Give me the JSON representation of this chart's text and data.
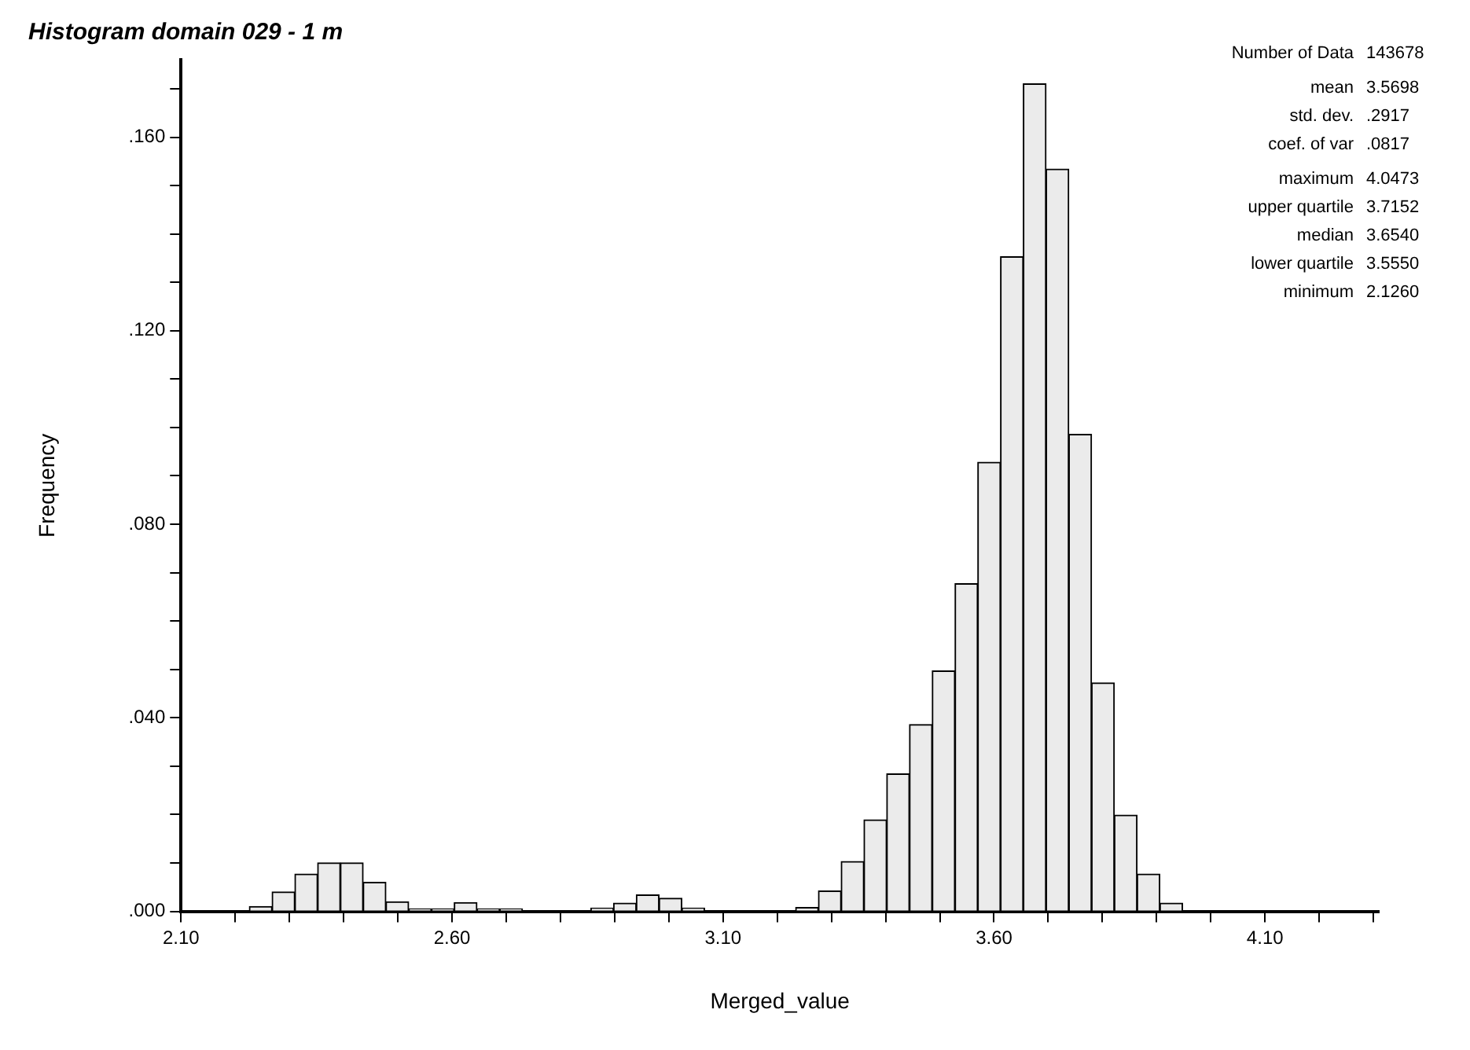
{
  "chart_data": {
    "type": "histogram",
    "title": "Histogram domain 029 - 1 m",
    "xlabel": "Merged_value",
    "ylabel": "Frequency",
    "bins": [
      2.226,
      2.268,
      2.31,
      2.352,
      2.394,
      2.436,
      2.478,
      2.52,
      2.562,
      2.604,
      2.646,
      2.688,
      2.73,
      2.772,
      2.814,
      2.856,
      2.898,
      2.94,
      2.982,
      3.024,
      3.066,
      3.108,
      3.15,
      3.192,
      3.234,
      3.276,
      3.318,
      3.36,
      3.402,
      3.444,
      3.486,
      3.528,
      3.57,
      3.612,
      3.654,
      3.696,
      3.738,
      3.78,
      3.822,
      3.864,
      3.906,
      3.948
    ],
    "values": [
      0.001,
      0.004,
      0.0077,
      0.01,
      0.01,
      0.006,
      0.002,
      0.0005,
      0.0005,
      0.0018,
      0.0005,
      0.0005,
      0,
      0,
      0,
      0.0007,
      0.0017,
      0.0034,
      0.0027,
      0.0007,
      0,
      0,
      0,
      0,
      0.0008,
      0.0042,
      0.0103,
      0.0189,
      0.0284,
      0.0386,
      0.0497,
      0.0677,
      0.0928,
      0.1353,
      0.171,
      0.1534,
      0.0986,
      0.0472,
      0.0199,
      0.0077,
      0.0017
    ],
    "color": "#ebebeb",
    "xlim": [
      2.1,
      4.31
    ],
    "xticks": [
      {
        "value": 2.1,
        "label": "2.10"
      },
      {
        "value": 2.2,
        "label": null
      },
      {
        "value": 2.3,
        "label": null
      },
      {
        "value": 2.4,
        "label": null
      },
      {
        "value": 2.5,
        "label": null
      },
      {
        "value": 2.6,
        "label": "2.60"
      },
      {
        "value": 2.7,
        "label": null
      },
      {
        "value": 2.8,
        "label": null
      },
      {
        "value": 2.9,
        "label": null
      },
      {
        "value": 3.0,
        "label": null
      },
      {
        "value": 3.1,
        "label": "3.10"
      },
      {
        "value": 3.2,
        "label": null
      },
      {
        "value": 3.3,
        "label": null
      },
      {
        "value": 3.4,
        "label": null
      },
      {
        "value": 3.5,
        "label": null
      },
      {
        "value": 3.6,
        "label": "3.60"
      },
      {
        "value": 3.7,
        "label": null
      },
      {
        "value": 3.8,
        "label": null
      },
      {
        "value": 3.9,
        "label": null
      },
      {
        "value": 4.0,
        "label": null
      },
      {
        "value": 4.1,
        "label": "4.10"
      },
      {
        "value": 4.2,
        "label": null
      },
      {
        "value": 4.3,
        "label": null
      }
    ],
    "ylim": [
      0,
      0.176
    ],
    "yticks": [
      {
        "value": 0,
        "label": ".000"
      },
      {
        "value": 0.01,
        "label": null
      },
      {
        "value": 0.02,
        "label": null
      },
      {
        "value": 0.03,
        "label": null
      },
      {
        "value": 0.04,
        "label": ".040"
      },
      {
        "value": 0.05,
        "label": null
      },
      {
        "value": 0.06,
        "label": null
      },
      {
        "value": 0.07,
        "label": null
      },
      {
        "value": 0.08,
        "label": ".080"
      },
      {
        "value": 0.09,
        "label": null
      },
      {
        "value": 0.1,
        "label": null
      },
      {
        "value": 0.11,
        "label": null
      },
      {
        "value": 0.12,
        "label": ".120"
      },
      {
        "value": 0.13,
        "label": null
      },
      {
        "value": 0.14,
        "label": null
      },
      {
        "value": 0.15,
        "label": null
      },
      {
        "value": 0.16,
        "label": ".160"
      },
      {
        "value": 0.17,
        "label": null
      }
    ],
    "grid": false,
    "legend": false,
    "annotations": [
      "Number of Data 143678",
      "mean 3.5698",
      "std. dev. .2917",
      "coef. of var .0817",
      "maximum 4.0473",
      "upper quartile 3.7152",
      "median 3.6540",
      "lower quartile 3.5550",
      "minimum 2.1260"
    ]
  }
}
